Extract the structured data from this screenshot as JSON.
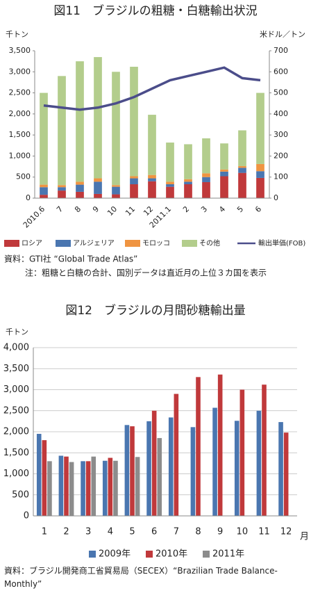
{
  "chart_data": [
    {
      "type": "bar",
      "stacked": true,
      "title": "図11　ブラジルの粗糖・白糖輸出状況",
      "y_unit": "千トン",
      "y2_unit": "米ドル／トン",
      "categories": [
        "2010.6",
        "7",
        "8",
        "9",
        "10",
        "11",
        "12",
        "2011.1",
        "2",
        "3",
        "4",
        "5",
        "6"
      ],
      "series": [
        {
          "name": "ロシア",
          "color": "#c0393b",
          "values": [
            80,
            180,
            150,
            100,
            90,
            330,
            400,
            270,
            330,
            380,
            520,
            600,
            480
          ]
        },
        {
          "name": "アルジェリア",
          "color": "#4a76b0",
          "values": [
            180,
            80,
            170,
            290,
            180,
            140,
            70,
            60,
            60,
            120,
            110,
            120,
            160
          ]
        },
        {
          "name": "モロッコ",
          "color": "#ef9441",
          "values": [
            60,
            50,
            70,
            80,
            40,
            50,
            80,
            60,
            60,
            90,
            50,
            40,
            170
          ]
        },
        {
          "name": "その他",
          "color": "#b3cd8c",
          "values": [
            2180,
            2590,
            2860,
            2880,
            2690,
            2600,
            1430,
            930,
            830,
            830,
            620,
            850,
            1690
          ]
        },
        {
          "name": "輸出単価(FOB)",
          "type": "line",
          "axis": "y2",
          "color": "#4b4d8a",
          "values": [
            440,
            430,
            420,
            430,
            450,
            480,
            520,
            560,
            580,
            600,
            620,
            570,
            560
          ]
        }
      ],
      "ylim": [
        0,
        3500
      ],
      "yticks": [
        0,
        500,
        {
          "value": 1000,
          "label": "1,000"
        },
        {
          "value": 1500,
          "label": "1,500"
        },
        {
          "value": 2000,
          "label": "2,000"
        },
        {
          "value": 2500,
          "label": "2,500"
        },
        {
          "value": 3000,
          "label": "3,000"
        },
        {
          "value": 3500,
          "label": "3,500"
        }
      ],
      "y2lim": [
        0,
        700
      ],
      "y2ticks": [
        0,
        100,
        200,
        300,
        400,
        500,
        600,
        700
      ],
      "grid": false,
      "source": "資料：GTI社 “Global Trade Atlas”",
      "note": "注：粗糖と白糖の合計、国別データは直近月の上位３カ国を表示"
    },
    {
      "type": "bar",
      "stacked": false,
      "title": "図12　ブラジルの月間砂糖輸出量",
      "y_unit": "千トン",
      "x_unit": "月",
      "categories": [
        "1",
        "2",
        "3",
        "4",
        "5",
        "6",
        "7",
        "8",
        "9",
        "10",
        "11",
        "12"
      ],
      "series": [
        {
          "name": "2009年",
          "color": "#4a76b0",
          "values": [
            1950,
            1430,
            1300,
            1310,
            2160,
            2250,
            2340,
            2110,
            2570,
            2260,
            2500,
            2230
          ]
        },
        {
          "name": "2010年",
          "color": "#c0393b",
          "values": [
            1800,
            1410,
            1300,
            1380,
            2130,
            2500,
            2900,
            3300,
            3360,
            3000,
            3120,
            1980
          ]
        },
        {
          "name": "2011年",
          "color": "#8c8c8c",
          "values": [
            1300,
            1280,
            1410,
            1310,
            1400,
            1850,
            null,
            null,
            null,
            null,
            null,
            null
          ]
        }
      ],
      "ylim": [
        0,
        4000
      ],
      "yticks": [
        0,
        500,
        {
          "value": 1000,
          "label": "1,000"
        },
        {
          "value": 1500,
          "label": "1,500"
        },
        {
          "value": 2000,
          "label": "2,000"
        },
        {
          "value": 2500,
          "label": "2,500"
        },
        {
          "value": 3000,
          "label": "3,000"
        },
        {
          "value": 3500,
          "label": "3,500"
        },
        {
          "value": 4000,
          "label": "4,000"
        }
      ],
      "grid": true,
      "source": "資料：ブラジル開発商工省貿易局（SECEX）“Brazilian Trade Balance-Monthly”"
    }
  ]
}
